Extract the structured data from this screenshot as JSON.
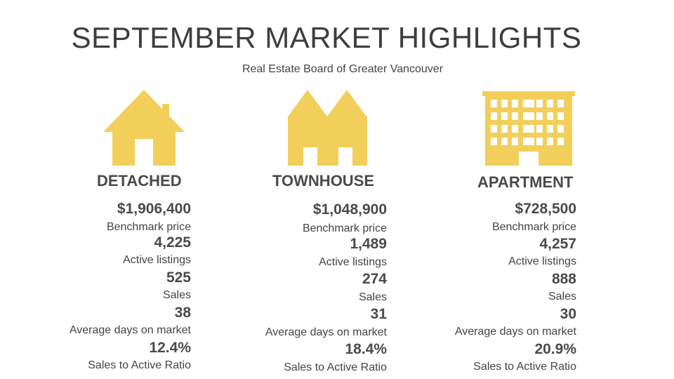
{
  "header": {
    "title": "SEPTEMBER MARKET HIGHLIGHTS",
    "subtitle": "Real Estate Board of Greater Vancouver"
  },
  "colors": {
    "icon": "#f2cf5b",
    "text": "#3d3d3d"
  },
  "columns": [
    {
      "icon": "house-icon",
      "heading": "DETACHED",
      "stats": [
        {
          "value": "$1,906,400",
          "label": "Benchmark price"
        },
        {
          "value": "4,225",
          "label": "Active listings"
        },
        {
          "value": "525",
          "label": "Sales"
        },
        {
          "value": "38",
          "label": "Average days on market"
        },
        {
          "value": "12.4%",
          "label": "Sales to Active Ratio"
        }
      ]
    },
    {
      "icon": "townhouse-icon",
      "heading": "TOWNHOUSE",
      "stats": [
        {
          "value": "$1,048,900",
          "label": "Benchmark price"
        },
        {
          "value": "1,489",
          "label": "Active listings"
        },
        {
          "value": "274",
          "label": "Sales"
        },
        {
          "value": "31",
          "label": "Average days on market"
        },
        {
          "value": "18.4%",
          "label": "Sales to Active Ratio"
        }
      ]
    },
    {
      "icon": "apartment-building-icon",
      "heading": "APARTMENT",
      "stats": [
        {
          "value": "$728,500",
          "label": "Benchmark price"
        },
        {
          "value": "4,257",
          "label": "Active listings"
        },
        {
          "value": "888",
          "label": "Sales"
        },
        {
          "value": "30",
          "label": "Average days on market"
        },
        {
          "value": "20.9%",
          "label": "Sales to Active Ratio"
        }
      ]
    }
  ]
}
